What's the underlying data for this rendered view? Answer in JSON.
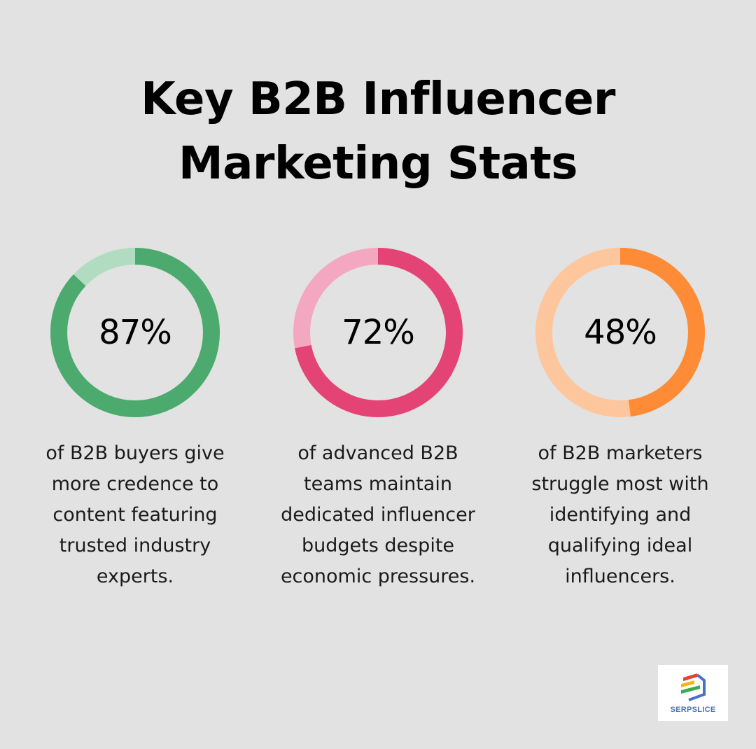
{
  "title_lines": [
    "Key B2B Influencer",
    "Marketing Stats"
  ],
  "stats": [
    {
      "value": "87%",
      "description": "of B2B buyers give\nmore credence to\ncontent featuring\ntrusted industry\nexperts.",
      "color": "#4caa6e",
      "track_color": "#b1dcc1"
    },
    {
      "value": "72%",
      "description": "of advanced B2B\nteams maintain\ndedicated influencer\nbudgets despite\neconomic pressures.",
      "color": "#e44375",
      "track_color": "#f3a7c0"
    },
    {
      "value": "48%",
      "description": "of B2B marketers\nstruggle most with\nidentifying and\nqualifying ideal\ninfluencers.",
      "color": "#fe8b36",
      "track_color": "#fec69c"
    }
  ],
  "logo": {
    "text": "SERPSLICE",
    "icon": "serpslice-logo-icon"
  },
  "chart_data": {
    "type": "pie",
    "subtype": "donut",
    "title": "Key B2B Influencer Marketing Stats",
    "categories": [
      "B2B buyers giving more credence to content featuring trusted industry experts",
      "Advanced B2B teams maintaining dedicated influencer budgets",
      "B2B marketers struggling most with identifying and qualifying ideal influencers"
    ],
    "values": [
      87,
      72,
      48
    ],
    "unit": "%",
    "max": 100,
    "colors": [
      "#4caa6e",
      "#e44375",
      "#fe8b36"
    ],
    "track_colors": [
      "#b1dcc1",
      "#f3a7c0",
      "#fec69c"
    ],
    "legend": "none"
  }
}
